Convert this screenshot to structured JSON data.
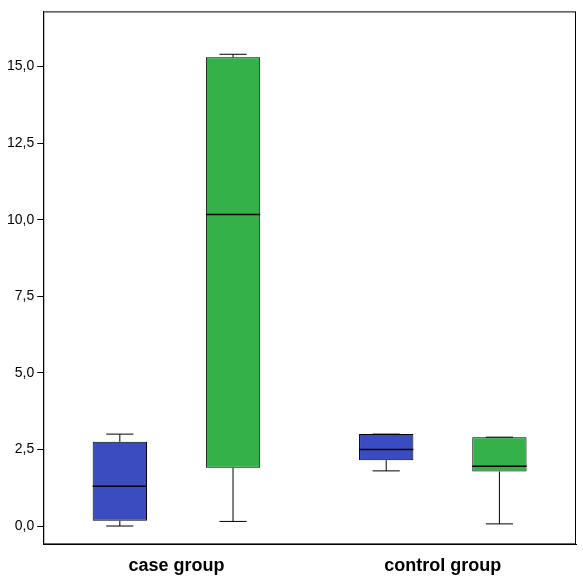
{
  "chart_data": {
    "type": "boxplot",
    "categories": [
      "case group",
      "control group"
    ],
    "series": [
      {
        "color": "#3b4cc0",
        "values": [
          {
            "min": 0.0,
            "q1": 0.17,
            "median": 1.3,
            "q3": 2.75,
            "max": 3.0
          },
          {
            "min": 1.8,
            "q1": 2.15,
            "median": 2.5,
            "q3": 3.0,
            "max": 3.0
          }
        ]
      },
      {
        "color": "#34b249",
        "values": [
          {
            "min": 0.15,
            "q1": 1.9,
            "median": 10.17,
            "q3": 15.3,
            "max": 15.4
          },
          {
            "min": 0.07,
            "q1": 1.78,
            "median": 1.95,
            "q3": 2.9,
            "max": 2.9
          }
        ]
      }
    ],
    "ylim": [
      -0.6,
      16.8
    ],
    "yticks": [
      {
        "value": 0,
        "label": "0,0"
      },
      {
        "value": 2.5,
        "label": "2,5"
      },
      {
        "value": 5,
        "label": "5,0"
      },
      {
        "value": 7.5,
        "label": "7,5"
      },
      {
        "value": 10,
        "label": "10,0"
      },
      {
        "value": 12.5,
        "label": "12,5"
      },
      {
        "value": 15,
        "label": "15,0"
      }
    ],
    "grid": false
  }
}
